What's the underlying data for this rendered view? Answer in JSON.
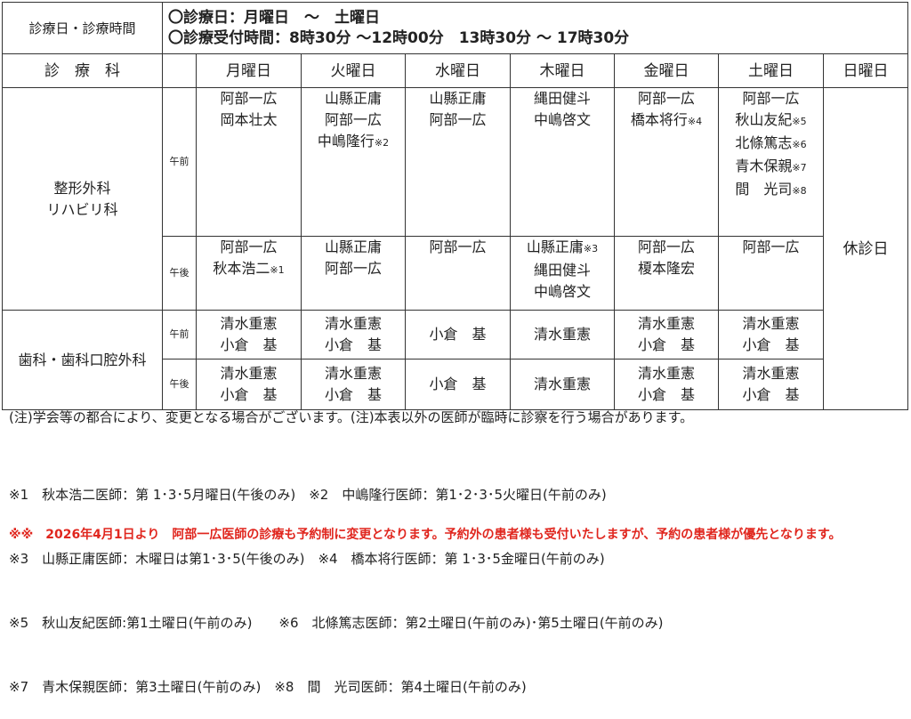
{
  "header": {
    "label": "診療日・診療時間",
    "line1": "〇診療日：月曜日　～　土曜日",
    "line2": "〇診療受付時間：8時30分 ～12時00分　13時30分 ～ 17時30分"
  },
  "dept_header": "診　療　科",
  "days": [
    "月曜日",
    "火曜日",
    "水曜日",
    "木曜日",
    "金曜日",
    "土曜日",
    "日曜日"
  ],
  "sunday": "休診日",
  "departments": [
    {
      "name": [
        "整形外科",
        "リハビリ科"
      ],
      "rows": [
        {
          "period": "午前",
          "cells": [
            [
              "阿部一広",
              "岡本壮太"
            ],
            [
              "山縣正庸",
              "阿部一広",
              "中嶋隆行※2"
            ],
            [
              "山縣正庸",
              "阿部一広"
            ],
            [
              "縄田健斗",
              "中嶋啓文"
            ],
            [
              "阿部一広",
              "橋本将行※4"
            ],
            [
              "阿部一広",
              "秋山友紀※5",
              "北條篤志※6",
              "青木保親※7",
              "間　光司※8"
            ]
          ]
        },
        {
          "period": "午後",
          "cells": [
            [
              "阿部一広",
              "秋本浩二※1"
            ],
            [
              "山縣正庸",
              "阿部一広"
            ],
            [
              "阿部一広"
            ],
            [
              "山縣正庸※3",
              "縄田健斗",
              "中嶋啓文"
            ],
            [
              "阿部一広",
              "榎本隆宏"
            ],
            [
              "阿部一広"
            ]
          ]
        }
      ]
    },
    {
      "name": [
        "歯科・歯科口腔外科"
      ],
      "rows": [
        {
          "period": "午前",
          "cells": [
            [
              "清水重憲",
              "小倉　基"
            ],
            [
              "清水重憲",
              "小倉　基"
            ],
            [
              "小倉　基"
            ],
            [
              "清水重憲"
            ],
            [
              "清水重憲",
              "小倉　基"
            ],
            [
              "清水重憲",
              "小倉　基"
            ]
          ]
        },
        {
          "period": "午後",
          "cells": [
            [
              "清水重憲",
              "小倉　基"
            ],
            [
              "清水重憲",
              "小倉　基"
            ],
            [
              "小倉　基"
            ],
            [
              "清水重憲"
            ],
            [
              "清水重憲",
              "小倉　基"
            ],
            [
              "清水重憲",
              "小倉　基"
            ]
          ]
        }
      ]
    }
  ],
  "notes": {
    "general": "(注)学会等の都合により、変更となる場合がございます。(注)本表以外の医師が臨時に診察を行う場合があります。",
    "footnotes": [
      "※1　秋本浩二医師：第 1･3･5月曜日(午後のみ)　※2　中嶋隆行医師：第1･2･3･5火曜日(午前のみ)",
      "※3　山縣正庸医師：木曜日は第1･3･5(午後のみ)　※4　橋本将行医師：第 1･3･5金曜日(午前のみ)",
      "※5　秋山友紀医師:第1土曜日(午前のみ)　　※6　北條篤志医師：第2土曜日(午前のみ)･第5土曜日(午前のみ)",
      "※7　青木保親医師：第3土曜日(午前のみ)　※8　間　光司医師：第4土曜日(午前のみ)"
    ],
    "red": "※※　2026年4月1日より　阿部一広医師の診療も予約制に変更となります。予約外の患者様も受付いたしますが、予約の患者様が優先となります。"
  },
  "colors": {
    "red": "#e0261e"
  }
}
